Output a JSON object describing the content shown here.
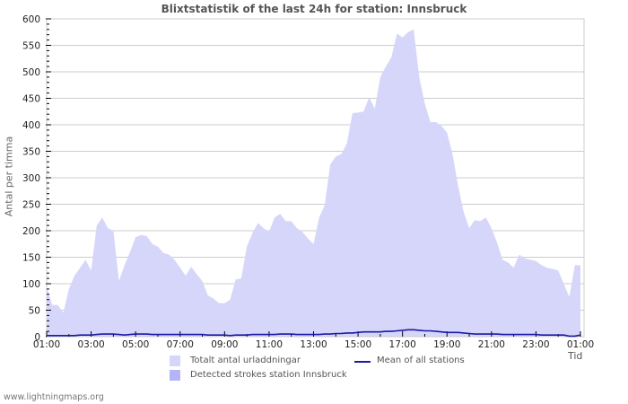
{
  "chart_data": {
    "type": "area",
    "title": "Blixtstatistik of the last 24h for station: Innsbruck",
    "xlabel": "Tid",
    "ylabel": "Antal per timma",
    "ylim": [
      0,
      600
    ],
    "yticks": [
      0,
      50,
      100,
      150,
      200,
      250,
      300,
      350,
      400,
      450,
      500,
      550,
      600
    ],
    "xticks": [
      "01:00",
      "03:00",
      "05:00",
      "07:00",
      "09:00",
      "11:00",
      "13:00",
      "15:00",
      "17:00",
      "19:00",
      "21:00",
      "23:00",
      "01:00"
    ],
    "grid": true,
    "legend_position": "bottom",
    "x_step_hours": 0.25,
    "x_start": "01:00",
    "series": [
      {
        "name": "Totalt antal urladdningar",
        "kind": "area",
        "color": "#d6d6fa",
        "values": [
          95,
          60,
          60,
          45,
          90,
          115,
          130,
          145,
          125,
          210,
          225,
          205,
          200,
          105,
          135,
          160,
          188,
          192,
          190,
          175,
          170,
          158,
          155,
          145,
          130,
          115,
          132,
          118,
          105,
          78,
          72,
          63,
          63,
          70,
          108,
          110,
          170,
          195,
          215,
          205,
          198,
          225,
          232,
          218,
          218,
          205,
          198,
          185,
          175,
          225,
          248,
          325,
          340,
          345,
          365,
          422,
          423,
          425,
          452,
          430,
          490,
          510,
          528,
          572,
          565,
          575,
          580,
          490,
          440,
          405,
          405,
          398,
          385,
          345,
          285,
          235,
          205,
          220,
          218,
          225,
          205,
          178,
          145,
          140,
          130,
          155,
          148,
          145,
          143,
          135,
          130,
          128,
          125,
          100,
          75,
          135,
          135
        ]
      },
      {
        "name": "Detected strokes station Innsbruck",
        "kind": "area",
        "color": "#b4b4f7",
        "values": []
      },
      {
        "name": "Mean of all stations",
        "kind": "line",
        "color": "#1a1aa6",
        "values": [
          2,
          2,
          2,
          2,
          2,
          2,
          3,
          3,
          3,
          4,
          5,
          5,
          5,
          4,
          3,
          4,
          5,
          5,
          5,
          4,
          4,
          4,
          4,
          4,
          4,
          4,
          4,
          4,
          4,
          3,
          3,
          3,
          3,
          2,
          3,
          3,
          3,
          4,
          4,
          4,
          4,
          4,
          5,
          5,
          5,
          4,
          4,
          4,
          4,
          4,
          5,
          5,
          6,
          6,
          7,
          7,
          8,
          9,
          9,
          9,
          9,
          10,
          10,
          11,
          12,
          13,
          13,
          12,
          11,
          11,
          10,
          9,
          8,
          8,
          8,
          7,
          6,
          5,
          5,
          5,
          5,
          5,
          4,
          4,
          4,
          4,
          4,
          4,
          4,
          3,
          3,
          3,
          3,
          3,
          1,
          1,
          3
        ]
      }
    ]
  },
  "legend": {
    "items": [
      {
        "label": "Totalt antal urladdningar",
        "color": "#d6d6fa"
      },
      {
        "label": "Detected strokes station Innsbruck",
        "color": "#b4b4f7"
      },
      {
        "label": "Mean of all stations",
        "color": "#1a1aa6"
      }
    ]
  },
  "footer": "www.lightningmaps.org"
}
